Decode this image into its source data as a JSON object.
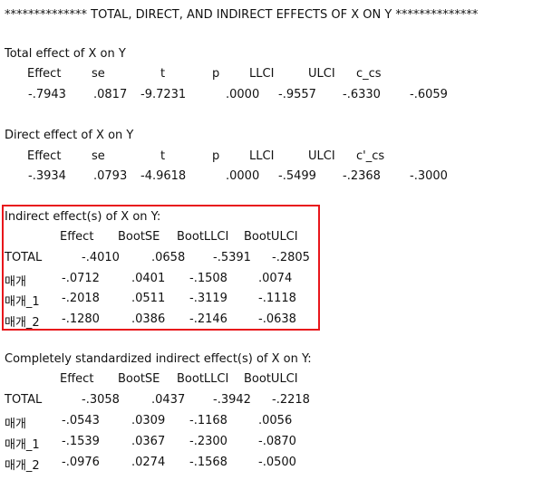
{
  "colors": {
    "highlight": "#e8161b"
  },
  "heading": "************** TOTAL, DIRECT, AND INDIRECT EFFECTS OF X ON Y **************",
  "total_effect": {
    "title": "Total effect of X on Y",
    "headers": [
      "Effect",
      "se",
      "t",
      "p",
      "LLCI",
      "ULCI",
      "c_cs"
    ],
    "values": [
      "-.7943",
      ".0817",
      "-9.7231",
      ".0000",
      "-.9557",
      "-.6330",
      "-.6059"
    ]
  },
  "direct_effect": {
    "title": "Direct effect of X on Y",
    "headers": [
      "Effect",
      "se",
      "t",
      "p",
      "LLCI",
      "ULCI",
      "c'_cs"
    ],
    "values": [
      "-.3934",
      ".0793",
      "-4.9618",
      ".0000",
      "-.5499",
      "-.2368",
      "-.3000"
    ]
  },
  "indirect_effect": {
    "title": "Indirect effect(s) of X on Y:",
    "headers": [
      "Effect",
      "BootSE",
      "BootLLCI",
      "BootULCI"
    ],
    "rows": [
      {
        "label": "TOTAL",
        "values": [
          "-.4010",
          ".0658",
          "-.5391",
          "-.2805"
        ]
      },
      {
        "label": "매개",
        "values": [
          "-.0712",
          ".0401",
          "-.1508",
          ".0074"
        ]
      },
      {
        "label": "매개_1",
        "values": [
          "-.2018",
          ".0511",
          "-.3119",
          "-.1118"
        ]
      },
      {
        "label": "매개_2",
        "values": [
          "-.1280",
          ".0386",
          "-.2146",
          "-.0638"
        ]
      }
    ]
  },
  "standardized_indirect": {
    "title": "Completely standardized indirect effect(s) of X on Y:",
    "headers": [
      "Effect",
      "BootSE",
      "BootLLCI",
      "BootULCI"
    ],
    "rows": [
      {
        "label": "TOTAL",
        "values": [
          "-.3058",
          ".0437",
          "-.3942",
          "-.2218"
        ]
      },
      {
        "label": "매개",
        "values": [
          "-.0543",
          ".0309",
          "-.1168",
          ".0056"
        ]
      },
      {
        "label": "매개_1",
        "values": [
          "-.1539",
          ".0367",
          "-.2300",
          "-.0870"
        ]
      },
      {
        "label": "매개_2",
        "values": [
          "-.0976",
          ".0274",
          "-.1568",
          "-.0500"
        ]
      }
    ]
  }
}
